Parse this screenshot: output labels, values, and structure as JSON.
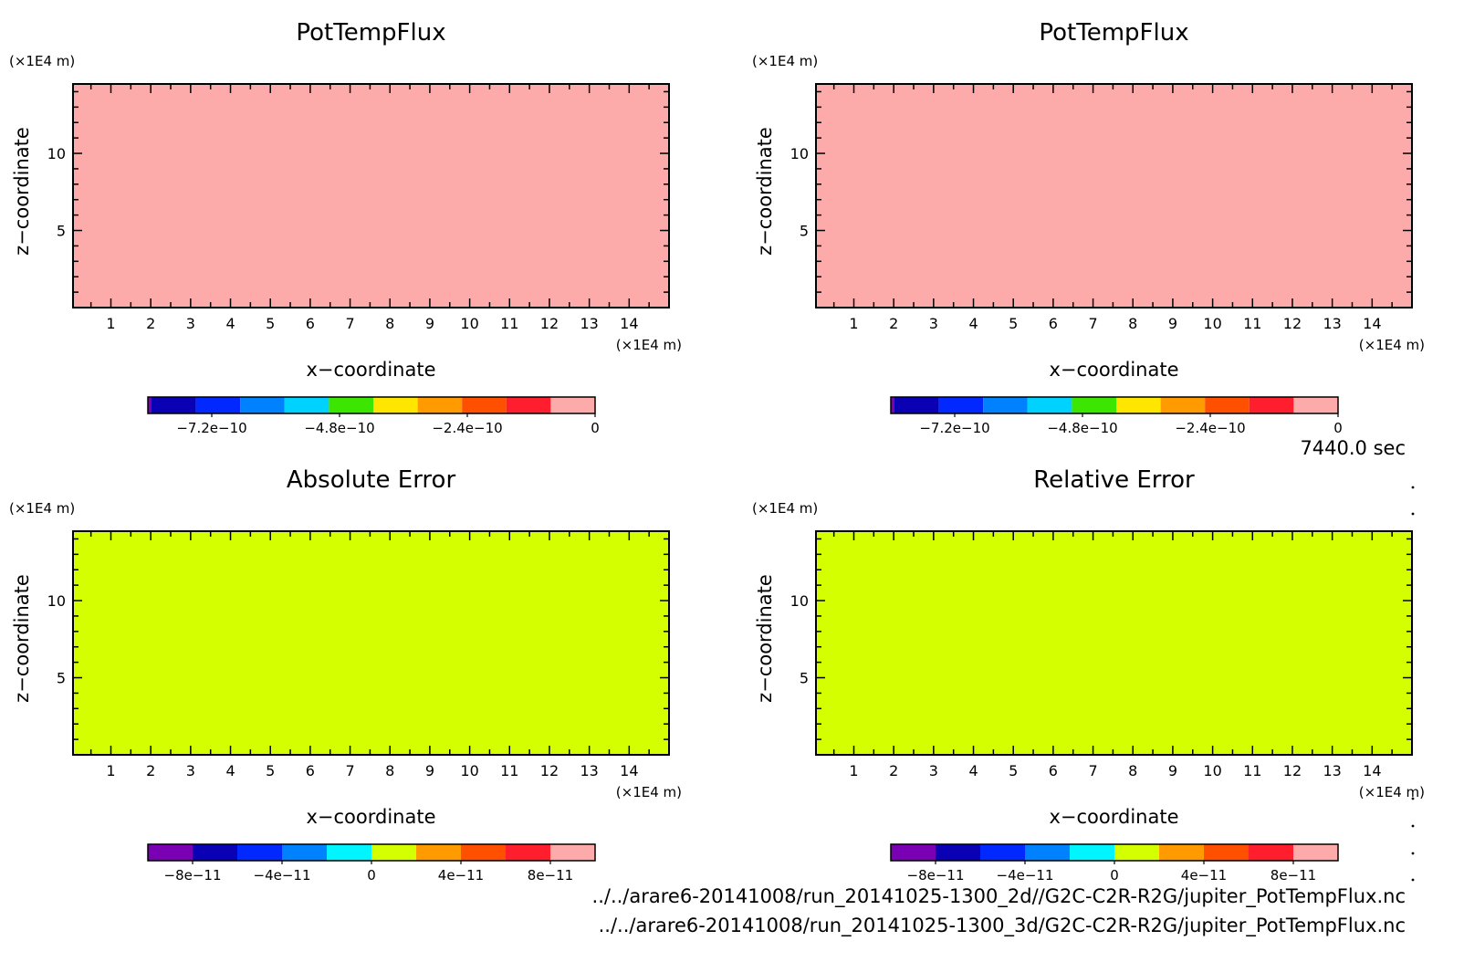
{
  "colors": {
    "potflux_fill": "#fdaaaa",
    "error_fill": "#d4ff00",
    "frame": "#000000"
  },
  "palettes": {
    "potflux": [
      "#7a00b4",
      "#0a00b4",
      "#0028ff",
      "#0082ff",
      "#00d2ff",
      "#3ce600",
      "#ffe600",
      "#ff9a00",
      "#ff5000",
      "#ff1e2d",
      "#fdaaaa"
    ],
    "error": [
      "#7a00b4",
      "#0a00b4",
      "#0028ff",
      "#0082ff",
      "#00f5ff",
      "#d4ff00",
      "#ff9a00",
      "#ff5000",
      "#ff1e2d",
      "#fdaaaa"
    ]
  },
  "time_label": "7440.0 sec",
  "file_paths": [
    "../../arare6-20141008/run_20141025-1300_2d//G2C-C2R-R2G/jupiter_PotTempFlux.nc",
    "../../arare6-20141008/run_20141025-1300_3d/G2C-C2R-R2G/jupiter_PotTempFlux.nc"
  ],
  "chart_data": [
    {
      "type": "heatmap",
      "title": "PotTempFlux",
      "xlabel": "x−coordinate",
      "ylabel": "z−coordinate",
      "x_unit": "(×1E4 m)",
      "y_unit": "(×1E4 m)",
      "xlim": [
        0.05,
        15
      ],
      "ylim": [
        0,
        14.5
      ],
      "x_ticks": [
        "1",
        "2",
        "3",
        "4",
        "5",
        "6",
        "7",
        "8",
        "9",
        "10",
        "11",
        "12",
        "13",
        "14"
      ],
      "y_ticks": [
        "5",
        "10"
      ],
      "field_value": 0,
      "colorbar": {
        "min": -8.4e-10,
        "max": 0,
        "labels": [
          "−7.2e−10",
          "−4.8e−10",
          "−2.4e−10",
          "0"
        ],
        "label_values": [
          -7.2e-10,
          -4.8e-10,
          -2.4e-10,
          0
        ]
      }
    },
    {
      "type": "heatmap",
      "title": "PotTempFlux",
      "xlabel": "x−coordinate",
      "ylabel": "z−coordinate",
      "x_unit": "(×1E4 m)",
      "y_unit": "(×1E4 m)",
      "xlim": [
        0.05,
        15
      ],
      "ylim": [
        0,
        14.5
      ],
      "x_ticks": [
        "1",
        "2",
        "3",
        "4",
        "5",
        "6",
        "7",
        "8",
        "9",
        "10",
        "11",
        "12",
        "13",
        "14"
      ],
      "y_ticks": [
        "5",
        "10"
      ],
      "field_value": 0,
      "colorbar": {
        "min": -8.4e-10,
        "max": 0,
        "labels": [
          "−7.2e−10",
          "−4.8e−10",
          "−2.4e−10",
          "0"
        ],
        "label_values": [
          -7.2e-10,
          -4.8e-10,
          -2.4e-10,
          0
        ]
      }
    },
    {
      "type": "heatmap",
      "title": "Absolute Error",
      "xlabel": "x−coordinate",
      "ylabel": "z−coordinate",
      "x_unit": "(×1E4 m)",
      "y_unit": "(×1E4 m)",
      "xlim": [
        0.05,
        15
      ],
      "ylim": [
        0,
        14.5
      ],
      "x_ticks": [
        "1",
        "2",
        "3",
        "4",
        "5",
        "6",
        "7",
        "8",
        "9",
        "10",
        "11",
        "12",
        "13",
        "14"
      ],
      "y_ticks": [
        "5",
        "10"
      ],
      "field_value": 0,
      "colorbar": {
        "min": -1e-10,
        "max": 1e-10,
        "labels": [
          "−8e−11",
          "−4e−11",
          "0",
          "4e−11",
          "8e−11"
        ],
        "label_values": [
          -8e-11,
          -4e-11,
          0,
          4e-11,
          8e-11
        ]
      }
    },
    {
      "type": "heatmap",
      "title": "Relative Error",
      "xlabel": "x−coordinate",
      "ylabel": "z−coordinate",
      "x_unit": "(×1E4 m)",
      "y_unit": "(×1E4 m)",
      "xlim": [
        0.05,
        15
      ],
      "ylim": [
        0,
        14.5
      ],
      "x_ticks": [
        "1",
        "2",
        "3",
        "4",
        "5",
        "6",
        "7",
        "8",
        "9",
        "10",
        "11",
        "12",
        "13",
        "14"
      ],
      "y_ticks": [
        "5",
        "10"
      ],
      "field_value": 0,
      "colorbar": {
        "min": -1e-10,
        "max": 1e-10,
        "labels": [
          "−8e−11",
          "−4e−11",
          "0",
          "4e−11",
          "8e−11"
        ],
        "label_values": [
          -8e-11,
          -4e-11,
          0,
          4e-11,
          8e-11
        ]
      }
    }
  ]
}
